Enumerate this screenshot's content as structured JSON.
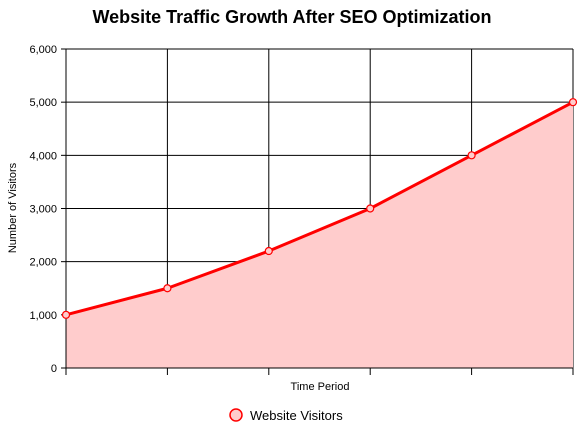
{
  "chart_data": {
    "type": "area",
    "title": "Website Traffic Growth After SEO Optimization",
    "xlabel": "Time Period",
    "ylabel": "Number of Visitors",
    "x": [
      0,
      1,
      2,
      3,
      4,
      5
    ],
    "ylim": [
      0,
      6000
    ],
    "yticks": [
      0,
      1000,
      2000,
      3000,
      4000,
      5000,
      6000
    ],
    "ytick_labels": [
      "0",
      "1,000",
      "2,000",
      "3,000",
      "4,000",
      "5,000",
      "6,000"
    ],
    "grid": true,
    "legend_position": "bottom",
    "series": [
      {
        "name": "Website Visitors",
        "values": [
          1000,
          1500,
          2200,
          3000,
          4000,
          5000
        ],
        "line_color": "#ff0000",
        "fill_color": "#ffcccc"
      }
    ]
  }
}
